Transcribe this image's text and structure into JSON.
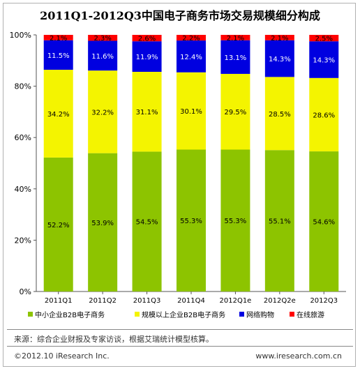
{
  "title": "2011Q1-2012Q3中国电子商务市场交易规模细分构成",
  "chart_data": {
    "type": "bar",
    "stacked": true,
    "percent": true,
    "categories": [
      "2011Q1",
      "2011Q2",
      "2011Q3",
      "2011Q4",
      "2012Q1e",
      "2012Q2e",
      "2012Q3"
    ],
    "series": [
      {
        "name": "中小企业B2B电子商务",
        "color": "#8dc400",
        "values": [
          52.2,
          53.9,
          54.5,
          55.3,
          55.3,
          55.1,
          54.6
        ]
      },
      {
        "name": "规模以上企业B2B电子商务",
        "color": "#f4f400",
        "values": [
          34.2,
          32.2,
          31.1,
          30.1,
          29.5,
          28.5,
          28.6
        ]
      },
      {
        "name": "网络购物",
        "color": "#0000e0",
        "values": [
          11.5,
          11.6,
          11.9,
          12.4,
          13.1,
          14.3,
          14.3
        ]
      },
      {
        "name": "在线旅游",
        "color": "#ff0000",
        "values": [
          2.1,
          2.3,
          2.6,
          2.2,
          2.1,
          2.1,
          2.5
        ]
      }
    ],
    "yticks": [
      "0%",
      "20%",
      "40%",
      "60%",
      "80%",
      "100%"
    ],
    "ylim": [
      0,
      100
    ],
    "grid": false,
    "legend_position": "bottom"
  },
  "footer": {
    "source": "来源：综合企业财报及专家访谈，根据艾瑞统计模型核算。",
    "copyright": "©2012.10 iResearch Inc.",
    "website": "www.iresearch.com.cn"
  }
}
